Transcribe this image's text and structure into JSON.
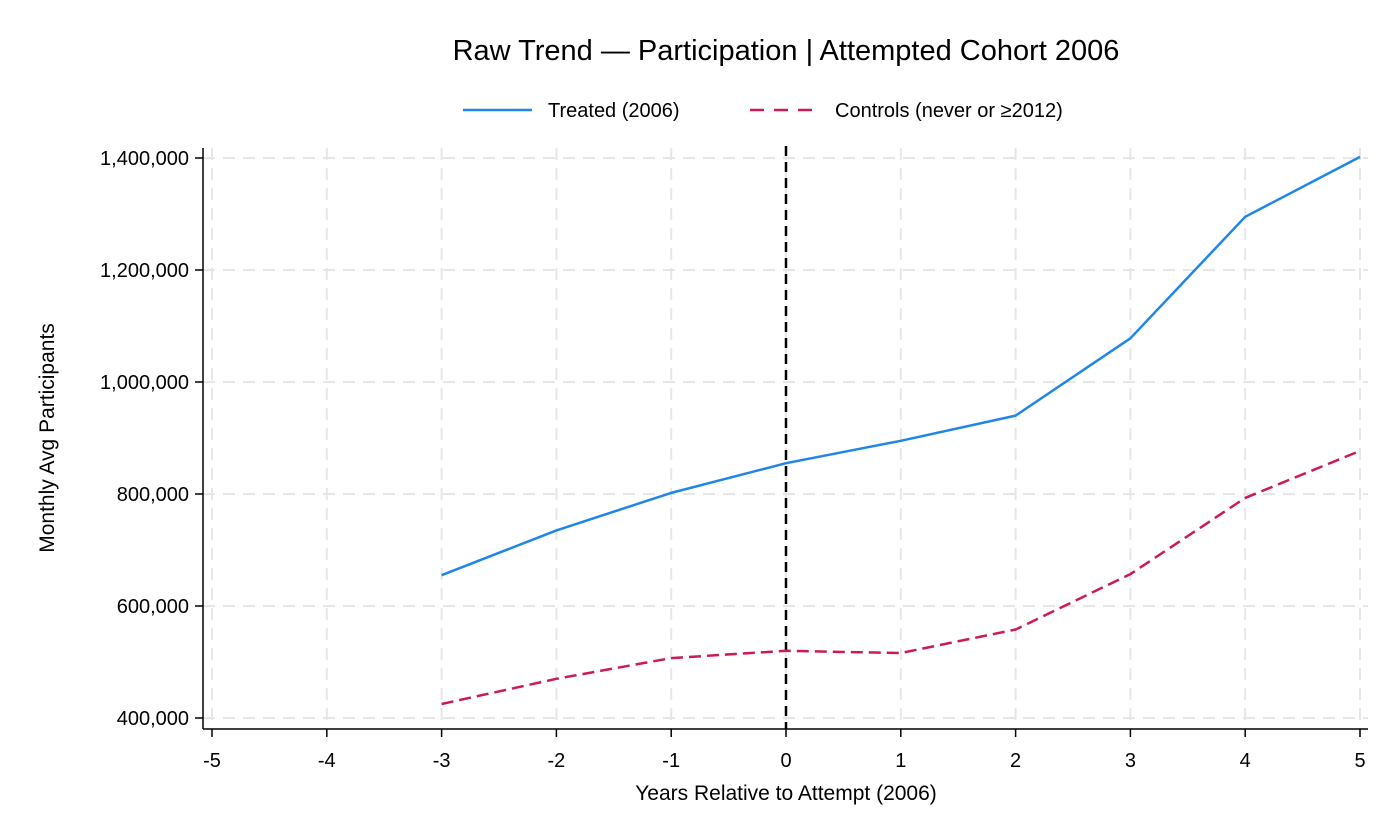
{
  "chart_data": {
    "type": "line",
    "title": "Raw Trend — Participation | Attempted Cohort 2006",
    "xlabel": "Years Relative to Attempt (2006)",
    "ylabel": "Monthly Avg Participants",
    "xlim": [
      -5,
      5
    ],
    "ylim": [
      400000,
      1400000
    ],
    "x_ticks": [
      -5,
      -4,
      -3,
      -2,
      -1,
      0,
      1,
      2,
      3,
      4,
      5
    ],
    "x_tick_labels": [
      "-5",
      "-4",
      "-3",
      "-2",
      "-1",
      "0",
      "1",
      "2",
      "3",
      "4",
      "5"
    ],
    "y_ticks": [
      400000,
      600000,
      800000,
      1000000,
      1200000,
      1400000
    ],
    "y_tick_labels": [
      "400,000",
      "600,000",
      "800,000",
      "1,000,000",
      "1,200,000",
      "1,400,000"
    ],
    "grid": true,
    "legend_position": "top",
    "reference_line_x": 0,
    "series": [
      {
        "name": "Treated (2006)",
        "color": "#1f86e8",
        "style": "solid",
        "x": [
          -3,
          -2,
          -1,
          0,
          1,
          2,
          3,
          4,
          5
        ],
        "values": [
          655000,
          735000,
          802000,
          855000,
          895000,
          940000,
          1078000,
          1295000,
          1402000
        ]
      },
      {
        "name": "Controls (never or ≥2012)",
        "color": "#cc1a55",
        "style": "dashed",
        "x": [
          -3,
          -2,
          -1,
          0,
          1,
          2,
          3,
          4,
          5
        ],
        "values": [
          425000,
          470000,
          507000,
          520000,
          516000,
          558000,
          657000,
          793000,
          877000
        ]
      }
    ]
  }
}
